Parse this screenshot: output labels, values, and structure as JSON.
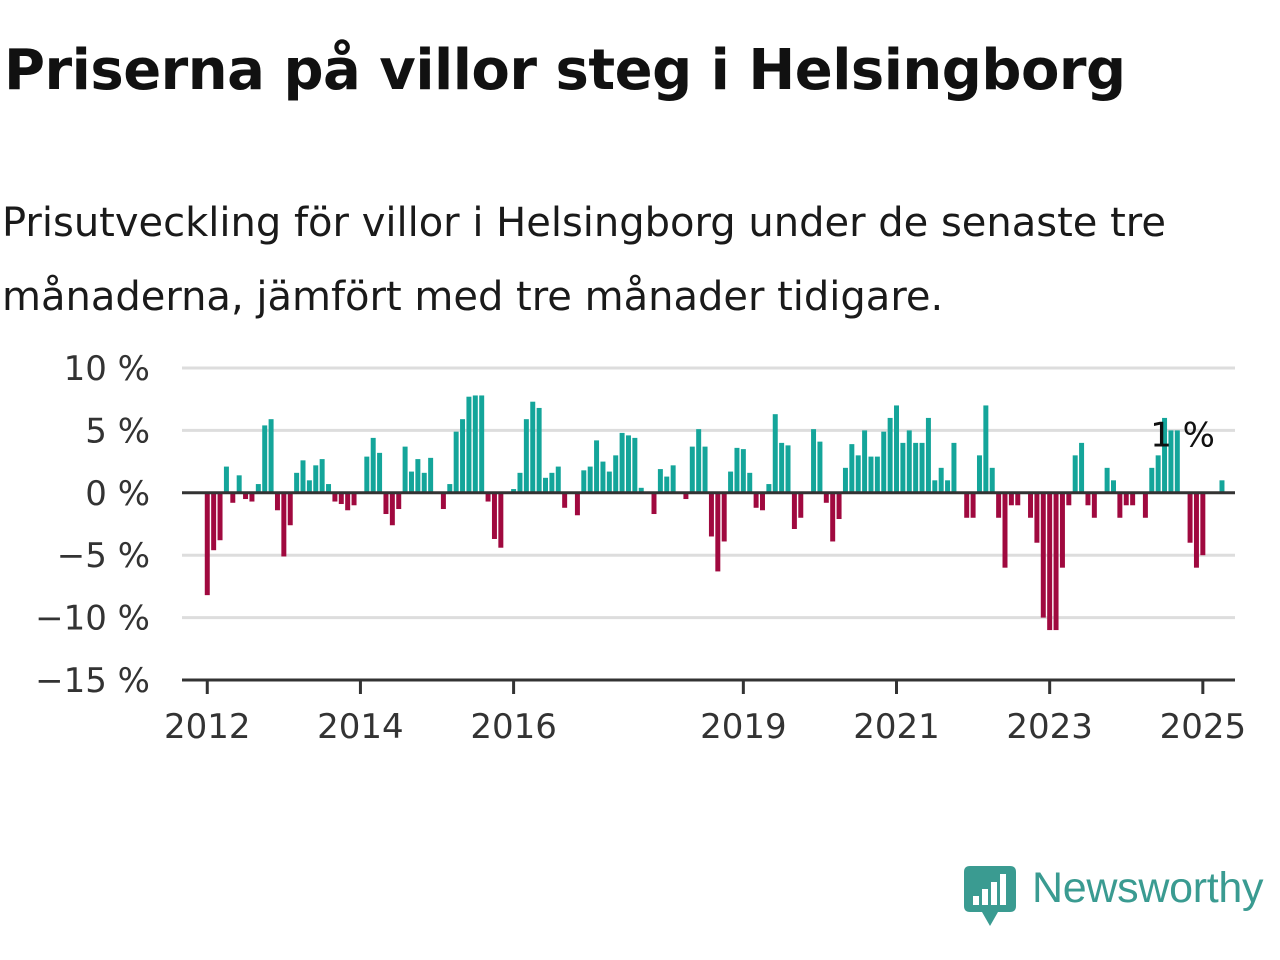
{
  "title": "Priserna på villor steg i Helsingborg",
  "subtitle": "Prisutveckling för villor i Helsingborg under de senaste tre månaderna, jämfört med tre månader tidigare.",
  "logo": {
    "text": "Newsworthy",
    "icon": "chart-speech-bubble-icon",
    "color": "#3a9b91"
  },
  "chart_data": {
    "type": "bar",
    "title": "",
    "xlabel": "",
    "ylabel": "",
    "unit": "%",
    "ylim": [
      -15,
      10
    ],
    "yticks": [
      10,
      5,
      0,
      -5,
      -10,
      -15
    ],
    "ytick_labels": [
      "10 %",
      "5 %",
      "0 %",
      "−5 %",
      "−10 %",
      "−15 %"
    ],
    "xlim": [
      2011.67,
      2025.42
    ],
    "xticks": [
      2012,
      2014,
      2016,
      2019,
      2021,
      2023,
      2025
    ],
    "xtick_labels": [
      "2012",
      "2014",
      "2016",
      "2019",
      "2021",
      "2023",
      "2025"
    ],
    "grid": true,
    "legend": "none",
    "colors": {
      "positive": "#14a59a",
      "negative": "#a0093f",
      "grid": "#dddddd",
      "axis": "#333333"
    },
    "annotation": {
      "text": "1 %",
      "x": 2025.08,
      "y": 1
    },
    "x_start": "2012-01",
    "x_step": "month",
    "values": [
      -8.2,
      -4.6,
      -3.8,
      2.1,
      -0.8,
      1.4,
      -0.5,
      -0.7,
      0.7,
      5.4,
      5.9,
      -1.4,
      -5.1,
      -2.6,
      1.6,
      2.6,
      1.0,
      2.2,
      2.7,
      0.7,
      -0.7,
      -0.9,
      -1.4,
      -1.0,
      0,
      2.9,
      4.4,
      3.2,
      -1.7,
      -2.6,
      -1.3,
      3.7,
      1.7,
      2.7,
      1.6,
      2.8,
      0,
      -1.3,
      0.7,
      4.9,
      5.9,
      7.7,
      7.8,
      7.8,
      -0.7,
      -3.7,
      -4.4,
      0,
      0.3,
      1.6,
      5.9,
      7.3,
      6.8,
      1.2,
      1.6,
      2.1,
      -1.2,
      0,
      -1.8,
      1.8,
      2.1,
      4.2,
      2.5,
      1.7,
      3.0,
      4.8,
      4.6,
      4.4,
      0.4,
      0,
      -1.7,
      1.9,
      1.3,
      2.2,
      0,
      -0.5,
      3.7,
      5.1,
      3.7,
      -3.5,
      -6.3,
      -3.9,
      1.7,
      3.6,
      3.5,
      1.6,
      -1.2,
      -1.4,
      0.7,
      6.3,
      4.0,
      3.8,
      -2.9,
      -2.0,
      0,
      5.1,
      4.1,
      -0.8,
      -3.9,
      -2.1,
      2.0,
      3.9,
      3.0,
      5.0,
      2.9,
      2.9,
      4.9,
      6.0,
      7.0,
      4.0,
      5.0,
      4.0,
      4.0,
      6.0,
      1.0,
      2.0,
      1.0,
      4.0,
      0,
      -2.0,
      -2.0,
      3.0,
      7.0,
      2.0,
      -2.0,
      -6.0,
      -1.0,
      -1.0,
      0,
      -2.0,
      -4.0,
      -10.0,
      -11.0,
      -11.0,
      -6.0,
      -1.0,
      3.0,
      4.0,
      -1.0,
      -2.0,
      0,
      2.0,
      1.0,
      -2.0,
      -1.0,
      -1.0,
      0,
      -2.0,
      2.0,
      3.0,
      6.0,
      5.0,
      5.0,
      0,
      -4.0,
      -6.0,
      -5.0,
      0,
      0,
      1.0
    ]
  }
}
